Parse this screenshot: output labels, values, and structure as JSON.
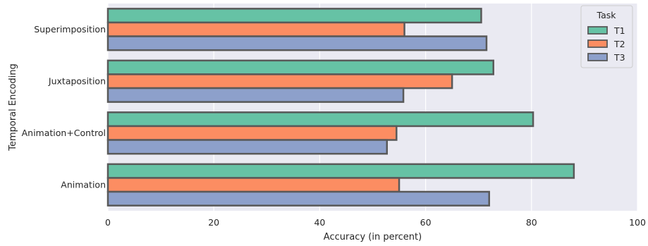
{
  "chart_data": {
    "type": "bar",
    "orientation": "horizontal",
    "categories": [
      "Superimposition",
      "Juxtaposition",
      "Animation+Control",
      "Animation"
    ],
    "series": [
      {
        "name": "T1",
        "values": [
          70.5,
          72.8,
          80.3,
          88.0
        ],
        "color": "#66c2a5"
      },
      {
        "name": "T2",
        "values": [
          56.0,
          65.0,
          54.5,
          55.0
        ],
        "color": "#fc8d62"
      },
      {
        "name": "T3",
        "values": [
          71.5,
          55.8,
          52.7,
          72.0
        ],
        "color": "#8da0cb"
      }
    ],
    "xlabel": "Accuracy (in percent)",
    "ylabel": "Temporal Encoding",
    "xlim": [
      0,
      100
    ],
    "xticks": [
      0,
      20,
      40,
      60,
      80,
      100
    ],
    "legend": {
      "title": "Task",
      "position": "top-right"
    },
    "grid": true,
    "background": "#eaeaf2",
    "bar_edge_color": "#595959"
  }
}
